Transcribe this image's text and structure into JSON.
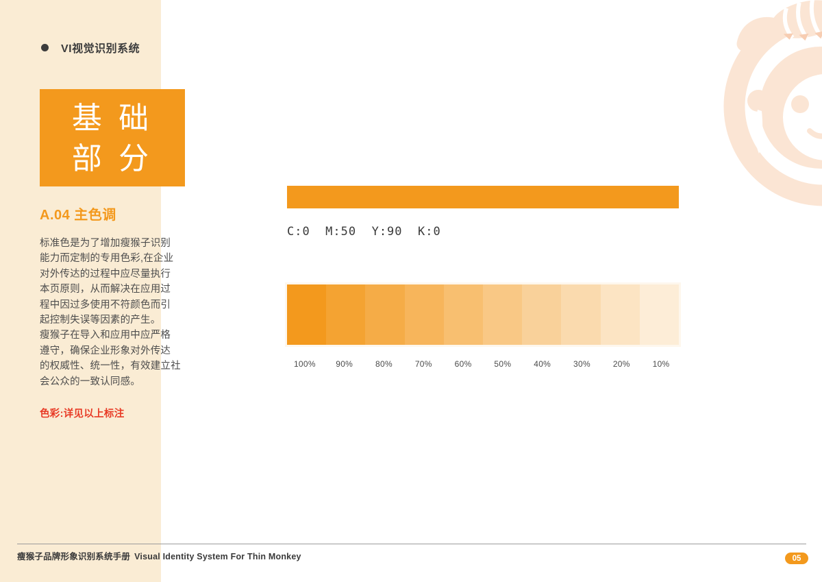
{
  "header": {
    "title": "VI视觉识别系统"
  },
  "section_box": {
    "line1": "基 础",
    "line2": "部 分",
    "background_color": "#F3991D",
    "text_color": "#FFFFFF"
  },
  "sidebar": {
    "section_heading": "A.04 主色调",
    "heading_color": "#F3991D",
    "body_lines": [
      "标准色是为了增加瘦猴子识别",
      "能力而定制的专用色彩,在企业",
      "对外传达的过程中应尽量执行",
      "本页原则，从而解决在应用过",
      "程中因过多使用不符颜色而引",
      "起控制失误等因素的产生。",
      "瘦猴子在导入和应用中应严格",
      "遵守，确保企业形象对外传达",
      "的权威性、统一性，有效建立社",
      "会公众的一致认同感。"
    ],
    "note": "色彩:详见以上标注",
    "note_color": "#E83A25",
    "background_color": "#FAECD4"
  },
  "main": {
    "primary_color": "#F3991D",
    "cmyk_label": "C:0  M:50  Y:90  K:0"
  },
  "color_ramp": {
    "base_color": "#F3991D",
    "levels": [
      {
        "label": "100%",
        "opacity": 1.0
      },
      {
        "label": "90%",
        "opacity": 0.9
      },
      {
        "label": "80%",
        "opacity": 0.8
      },
      {
        "label": "70%",
        "opacity": 0.7
      },
      {
        "label": "60%",
        "opacity": 0.6
      },
      {
        "label": "50%",
        "opacity": 0.5
      },
      {
        "label": "40%",
        "opacity": 0.4
      },
      {
        "label": "30%",
        "opacity": 0.3
      },
      {
        "label": "20%",
        "opacity": 0.2
      },
      {
        "label": "10%",
        "opacity": 0.1
      }
    ]
  },
  "footer": {
    "title_zh": "瘦猴子品牌形象识别系统手册",
    "title_en": "Visual Identity System For Thin Monkey",
    "page_number": "05"
  },
  "watermark": {
    "color": "#FBE5D4",
    "stripe_accent": "#F7CDB2"
  }
}
